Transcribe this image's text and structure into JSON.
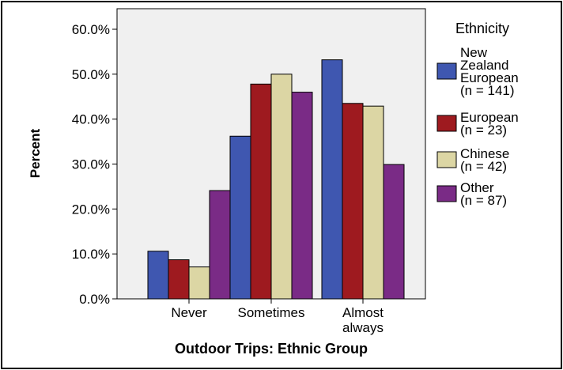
{
  "chart_data": {
    "type": "bar",
    "title": "",
    "xlabel": "Outdoor Trips: Ethnic Group",
    "ylabel": "Percent",
    "ylim": [
      0,
      60
    ],
    "y_ticks": [
      "0.0%",
      "10.0%",
      "20.0%",
      "30.0%",
      "40.0%",
      "50.0%",
      "60.0%"
    ],
    "y_tick_values": [
      0,
      10,
      20,
      30,
      40,
      50,
      60
    ],
    "categories": [
      "Never",
      "Sometimes",
      "Almost always"
    ],
    "category_labels": [
      [
        "Never"
      ],
      [
        "Sometimes"
      ],
      [
        "Almost",
        "always"
      ]
    ],
    "legend_title": "Ethnicity",
    "legend_position": "right",
    "grid": false,
    "series": [
      {
        "name": "New Zealand European (n = 141)",
        "label_lines": [
          "New",
          "Zealand",
          "European",
          "(n = 141)"
        ],
        "color": "#3f57b0",
        "values": [
          10.6,
          36.2,
          53.2
        ]
      },
      {
        "name": "European (n = 23)",
        "label_lines": [
          "European",
          "(n = 23)"
        ],
        "color": "#9e1a1f",
        "values": [
          8.7,
          47.8,
          43.5
        ]
      },
      {
        "name": "Chinese (n = 42)",
        "label_lines": [
          "Chinese",
          "(n = 42)"
        ],
        "color": "#dcd6a4",
        "values": [
          7.1,
          50.0,
          42.9
        ]
      },
      {
        "name": "Other (n = 87)",
        "label_lines": [
          "Other",
          "(n = 87)"
        ],
        "color": "#7a2b86",
        "values": [
          24.1,
          46.0,
          29.9
        ]
      }
    ]
  }
}
